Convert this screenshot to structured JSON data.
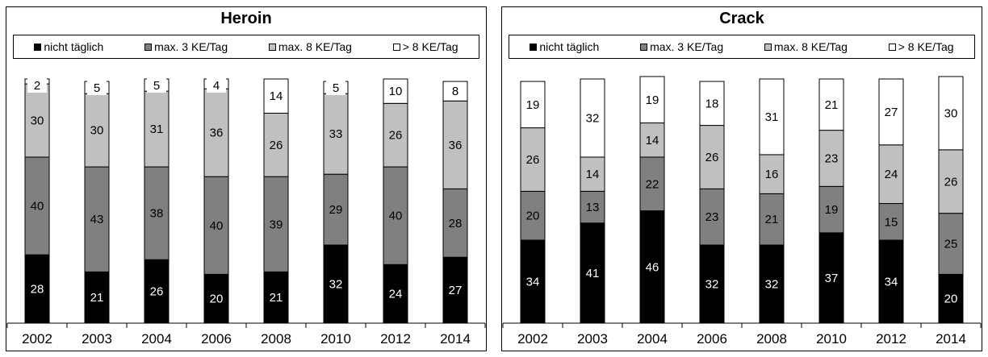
{
  "chart_data": [
    {
      "type": "bar",
      "stacked": true,
      "title": "Heroin",
      "categories": [
        "2002",
        "2003",
        "2004",
        "2006",
        "2008",
        "2010",
        "2012",
        "2014"
      ],
      "ylim": [
        0,
        100
      ],
      "legend_position": "top",
      "series": [
        {
          "name": "nicht täglich",
          "color": "#000000",
          "label_color": "#ffffff",
          "values": [
            28,
            21,
            26,
            20,
            21,
            32,
            24,
            27
          ]
        },
        {
          "name": "max. 3 KE/Tag",
          "color": "#808080",
          "label_color": "#000000",
          "values": [
            40,
            43,
            38,
            40,
            39,
            29,
            40,
            28
          ]
        },
        {
          "name": "max. 8 KE/Tag",
          "color": "#c0c0c0",
          "label_color": "#000000",
          "values": [
            30,
            30,
            31,
            36,
            26,
            33,
            26,
            36
          ]
        },
        {
          "name": "> 8 KE/Tag",
          "color": "#ffffff",
          "label_color": "#000000",
          "values": [
            2,
            5,
            5,
            4,
            14,
            5,
            10,
            8
          ]
        }
      ]
    },
    {
      "type": "bar",
      "stacked": true,
      "title": "Crack",
      "categories": [
        "2002",
        "2003",
        "2004",
        "2006",
        "2008",
        "2010",
        "2012",
        "2014"
      ],
      "ylim": [
        0,
        100
      ],
      "legend_position": "top",
      "series": [
        {
          "name": "nicht täglich",
          "color": "#000000",
          "label_color": "#ffffff",
          "values": [
            34,
            41,
            46,
            32,
            32,
            37,
            34,
            20
          ]
        },
        {
          "name": "max. 3 KE/Tag",
          "color": "#808080",
          "label_color": "#000000",
          "values": [
            20,
            13,
            22,
            23,
            21,
            19,
            15,
            25
          ]
        },
        {
          "name": "max. 8 KE/Tag",
          "color": "#c0c0c0",
          "label_color": "#000000",
          "values": [
            26,
            14,
            14,
            26,
            16,
            23,
            24,
            26
          ]
        },
        {
          "name": "> 8 KE/Tag",
          "color": "#ffffff",
          "label_color": "#000000",
          "values": [
            19,
            32,
            19,
            18,
            31,
            21,
            27,
            30
          ]
        }
      ]
    }
  ]
}
